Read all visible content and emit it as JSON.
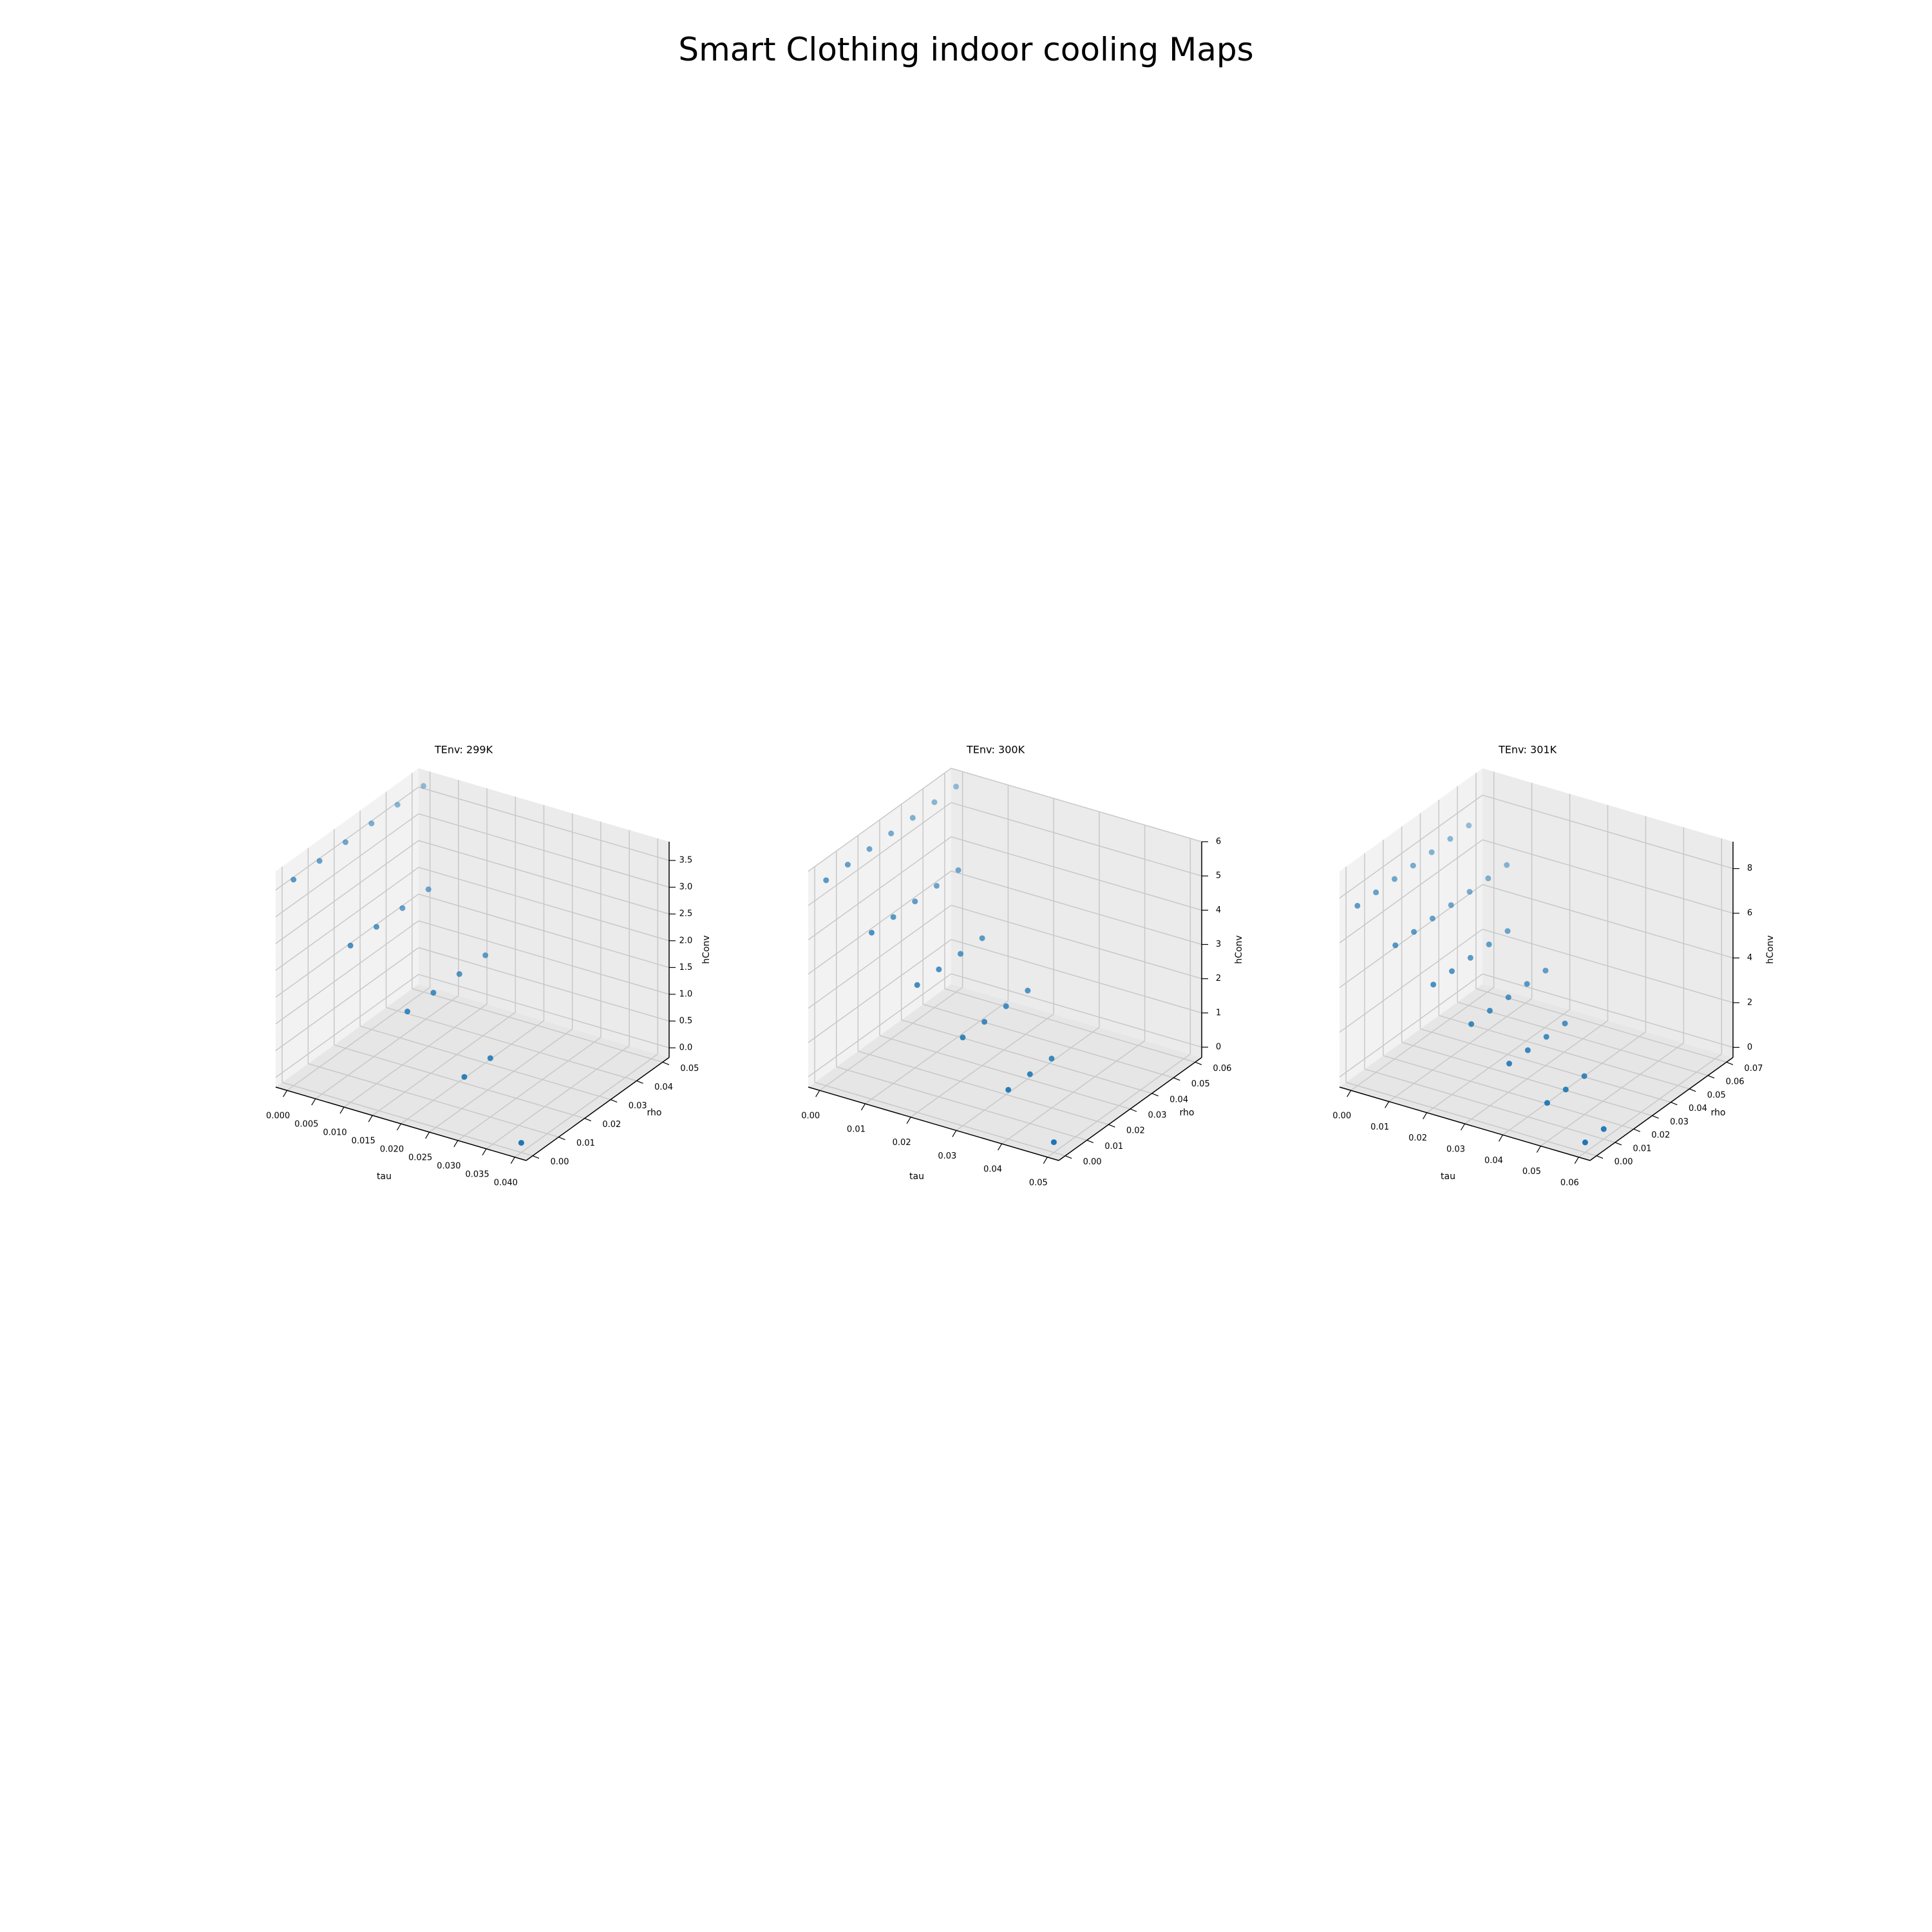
{
  "figure": {
    "title": "Smart Clothing indoor cooling Maps"
  },
  "colors": {
    "point": "#1f77b4",
    "pane_x": "#f2f2f2",
    "pane_y": "#ebebeb",
    "pane_z": "#e6e6e6",
    "grid": "#c8c8c8"
  },
  "chart_data": [
    {
      "type": "scatter3d",
      "title": "TEnv: 299K",
      "xlabel": "tau",
      "ylabel": "rho",
      "zlabel": "hConv",
      "xlim": [
        -0.002,
        0.042
      ],
      "ylim": [
        -0.0025,
        0.0525
      ],
      "zlim": [
        -0.18,
        3.85
      ],
      "xticks": [
        "0.000",
        "0.005",
        "0.010",
        "0.015",
        "0.020",
        "0.025",
        "0.030",
        "0.035",
        "0.040"
      ],
      "yticks": [
        "0.00",
        "0.01",
        "0.02",
        "0.03",
        "0.04",
        "0.05"
      ],
      "zticks": [
        "0.0",
        "0.5",
        "1.0",
        "1.5",
        "2.0",
        "2.5",
        "3.0",
        "3.5"
      ],
      "points": [
        {
          "x": 0.0,
          "y": 0.0,
          "z": 3.67
        },
        {
          "x": 0.0,
          "y": 0.01,
          "z": 3.67
        },
        {
          "x": 0.0,
          "y": 0.02,
          "z": 3.67
        },
        {
          "x": 0.0,
          "y": 0.03,
          "z": 3.67
        },
        {
          "x": 0.0,
          "y": 0.04,
          "z": 3.67
        },
        {
          "x": 0.0,
          "y": 0.05,
          "z": 3.67
        },
        {
          "x": 0.01,
          "y": 0.0,
          "z": 2.75
        },
        {
          "x": 0.01,
          "y": 0.01,
          "z": 2.75
        },
        {
          "x": 0.01,
          "y": 0.02,
          "z": 2.75
        },
        {
          "x": 0.01,
          "y": 0.03,
          "z": 2.75
        },
        {
          "x": 0.02,
          "y": 0.0,
          "z": 1.83
        },
        {
          "x": 0.02,
          "y": 0.01,
          "z": 1.83
        },
        {
          "x": 0.02,
          "y": 0.02,
          "z": 1.83
        },
        {
          "x": 0.02,
          "y": 0.03,
          "z": 1.83
        },
        {
          "x": 0.03,
          "y": 0.0,
          "z": 0.92
        },
        {
          "x": 0.03,
          "y": 0.01,
          "z": 0.92
        },
        {
          "x": 0.04,
          "y": 0.0,
          "z": 0.0
        }
      ]
    },
    {
      "type": "scatter3d",
      "title": "TEnv: 300K",
      "xlabel": "tau",
      "ylabel": "rho",
      "zlabel": "hConv",
      "xlim": [
        -0.0025,
        0.0525
      ],
      "ylim": [
        -0.003,
        0.063
      ],
      "zlim": [
        -0.3,
        6.0
      ],
      "xticks": [
        "0.00",
        "0.01",
        "0.02",
        "0.03",
        "0.04",
        "0.05"
      ],
      "yticks": [
        "0.00",
        "0.01",
        "0.02",
        "0.03",
        "0.04",
        "0.05",
        "0.06"
      ],
      "zticks": [
        "0",
        "1",
        "2",
        "3",
        "4",
        "5",
        "6"
      ],
      "points": [
        {
          "x": 0.0,
          "y": 0.0,
          "z": 5.7
        },
        {
          "x": 0.0,
          "y": 0.01,
          "z": 5.7
        },
        {
          "x": 0.0,
          "y": 0.02,
          "z": 5.7
        },
        {
          "x": 0.0,
          "y": 0.03,
          "z": 5.7
        },
        {
          "x": 0.0,
          "y": 0.04,
          "z": 5.7
        },
        {
          "x": 0.0,
          "y": 0.05,
          "z": 5.7
        },
        {
          "x": 0.0,
          "y": 0.06,
          "z": 5.7
        },
        {
          "x": 0.01,
          "y": 0.0,
          "z": 4.56
        },
        {
          "x": 0.01,
          "y": 0.01,
          "z": 4.56
        },
        {
          "x": 0.01,
          "y": 0.02,
          "z": 4.56
        },
        {
          "x": 0.01,
          "y": 0.03,
          "z": 4.56
        },
        {
          "x": 0.01,
          "y": 0.04,
          "z": 4.56
        },
        {
          "x": 0.02,
          "y": 0.0,
          "z": 3.42
        },
        {
          "x": 0.02,
          "y": 0.01,
          "z": 3.42
        },
        {
          "x": 0.02,
          "y": 0.02,
          "z": 3.42
        },
        {
          "x": 0.02,
          "y": 0.03,
          "z": 3.42
        },
        {
          "x": 0.03,
          "y": 0.0,
          "z": 2.28
        },
        {
          "x": 0.03,
          "y": 0.01,
          "z": 2.28
        },
        {
          "x": 0.03,
          "y": 0.02,
          "z": 2.28
        },
        {
          "x": 0.03,
          "y": 0.03,
          "z": 2.28
        },
        {
          "x": 0.04,
          "y": 0.0,
          "z": 1.14
        },
        {
          "x": 0.04,
          "y": 0.01,
          "z": 1.14
        },
        {
          "x": 0.04,
          "y": 0.02,
          "z": 1.14
        },
        {
          "x": 0.05,
          "y": 0.0,
          "z": 0.0
        }
      ]
    },
    {
      "type": "scatter3d",
      "title": "TEnv: 301K",
      "xlabel": "tau",
      "ylabel": "rho",
      "zlabel": "hConv",
      "xlim": [
        -0.003,
        0.063
      ],
      "ylim": [
        -0.0035,
        0.0735
      ],
      "zlim": [
        -0.45,
        9.2
      ],
      "xticks": [
        "0.00",
        "0.01",
        "0.02",
        "0.03",
        "0.04",
        "0.05",
        "0.06"
      ],
      "yticks": [
        "0.00",
        "0.01",
        "0.02",
        "0.03",
        "0.04",
        "0.05",
        "0.06",
        "0.07"
      ],
      "zticks": [
        "0",
        "2",
        "4",
        "6",
        "8"
      ],
      "points": [
        {
          "x": 0.0,
          "y": 0.0,
          "z": 7.6
        },
        {
          "x": 0.0,
          "y": 0.01,
          "z": 7.6
        },
        {
          "x": 0.0,
          "y": 0.02,
          "z": 7.6
        },
        {
          "x": 0.0,
          "y": 0.03,
          "z": 7.6
        },
        {
          "x": 0.0,
          "y": 0.04,
          "z": 7.6
        },
        {
          "x": 0.0,
          "y": 0.05,
          "z": 7.6
        },
        {
          "x": 0.0,
          "y": 0.06,
          "z": 7.6
        },
        {
          "x": 0.01,
          "y": 0.0,
          "z": 6.33
        },
        {
          "x": 0.01,
          "y": 0.01,
          "z": 6.33
        },
        {
          "x": 0.01,
          "y": 0.02,
          "z": 6.33
        },
        {
          "x": 0.01,
          "y": 0.03,
          "z": 6.33
        },
        {
          "x": 0.01,
          "y": 0.04,
          "z": 6.33
        },
        {
          "x": 0.01,
          "y": 0.05,
          "z": 6.33
        },
        {
          "x": 0.01,
          "y": 0.06,
          "z": 6.33
        },
        {
          "x": 0.02,
          "y": 0.0,
          "z": 5.07
        },
        {
          "x": 0.02,
          "y": 0.01,
          "z": 5.07
        },
        {
          "x": 0.02,
          "y": 0.02,
          "z": 5.07
        },
        {
          "x": 0.02,
          "y": 0.03,
          "z": 5.07
        },
        {
          "x": 0.02,
          "y": 0.04,
          "z": 5.07
        },
        {
          "x": 0.03,
          "y": 0.0,
          "z": 3.8
        },
        {
          "x": 0.03,
          "y": 0.01,
          "z": 3.8
        },
        {
          "x": 0.03,
          "y": 0.02,
          "z": 3.8
        },
        {
          "x": 0.03,
          "y": 0.03,
          "z": 3.8
        },
        {
          "x": 0.03,
          "y": 0.04,
          "z": 3.8
        },
        {
          "x": 0.04,
          "y": 0.0,
          "z": 2.53
        },
        {
          "x": 0.04,
          "y": 0.01,
          "z": 2.53
        },
        {
          "x": 0.04,
          "y": 0.02,
          "z": 2.53
        },
        {
          "x": 0.04,
          "y": 0.03,
          "z": 2.53
        },
        {
          "x": 0.05,
          "y": 0.0,
          "z": 1.27
        },
        {
          "x": 0.05,
          "y": 0.01,
          "z": 1.27
        },
        {
          "x": 0.05,
          "y": 0.02,
          "z": 1.27
        },
        {
          "x": 0.06,
          "y": 0.0,
          "z": 0.0
        },
        {
          "x": 0.06,
          "y": 0.01,
          "z": 0.0
        }
      ]
    }
  ]
}
